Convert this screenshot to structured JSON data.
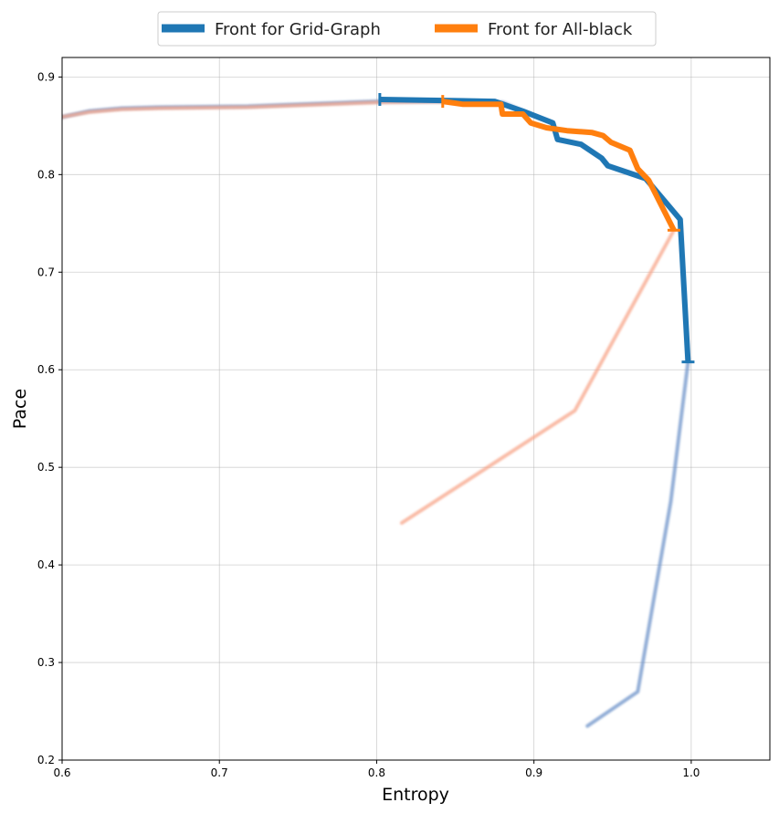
{
  "chart_data": {
    "type": "line",
    "xlabel": "Entropy",
    "ylabel": "Pace",
    "xlim": [
      0.6,
      1.05
    ],
    "ylim": [
      0.2,
      0.92
    ],
    "xticks": [
      0.6,
      0.7,
      0.8,
      0.9,
      1.0
    ],
    "xtick_labels": [
      "0.6",
      "0.7",
      "0.8",
      "0.9",
      "1.0"
    ],
    "yticks": [
      0.2,
      0.3,
      0.4,
      0.5,
      0.6,
      0.7,
      0.8,
      0.9
    ],
    "ytick_labels": [
      "0.2",
      "0.3",
      "0.4",
      "0.5",
      "0.6",
      "0.7",
      "0.8",
      "0.9"
    ],
    "grid": true,
    "legend_position": "top-center (outside plot)",
    "series": [
      {
        "name": "Front for Grid-Graph",
        "color": "#1f77b4",
        "role": "front",
        "x": [
          0.802,
          0.875,
          0.893,
          0.912,
          0.915,
          0.93,
          0.943,
          0.947,
          0.971,
          0.993,
          0.998
        ],
        "y": [
          0.877,
          0.875,
          0.865,
          0.853,
          0.836,
          0.831,
          0.817,
          0.809,
          0.796,
          0.754,
          0.608
        ]
      },
      {
        "name": "Front for All-black",
        "color": "#ff7f0e",
        "role": "front",
        "x": [
          0.842,
          0.855,
          0.879,
          0.88,
          0.893,
          0.898,
          0.908,
          0.921,
          0.937,
          0.944,
          0.949,
          0.961,
          0.966,
          0.973,
          0.989
        ],
        "y": [
          0.875,
          0.872,
          0.872,
          0.862,
          0.862,
          0.853,
          0.848,
          0.845,
          0.843,
          0.84,
          0.833,
          0.825,
          0.806,
          0.794,
          0.743
        ]
      },
      {
        "name": "",
        "color": "#6f93c9",
        "role": "faint",
        "x": [
          0.6,
          0.617,
          0.638,
          0.662,
          0.718,
          0.8,
          0.842,
          0.88,
          0.893,
          0.912,
          0.915,
          0.93,
          0.943,
          0.947,
          0.971,
          0.993,
          0.998,
          0.987,
          0.966,
          0.934
        ],
        "y": [
          0.859,
          0.865,
          0.868,
          0.869,
          0.87,
          0.875,
          0.875,
          0.874,
          0.865,
          0.853,
          0.836,
          0.831,
          0.817,
          0.809,
          0.796,
          0.754,
          0.608,
          0.465,
          0.27,
          0.235
        ]
      },
      {
        "name": "",
        "color": "#f7a58a",
        "role": "faint",
        "x": [
          0.6,
          0.617,
          0.638,
          0.662,
          0.718,
          0.8,
          0.842,
          0.855,
          0.879,
          0.88,
          0.893,
          0.898,
          0.908,
          0.921,
          0.937,
          0.944,
          0.949,
          0.961,
          0.966,
          0.973,
          0.989,
          0.926,
          0.816
        ],
        "y": [
          0.859,
          0.864,
          0.867,
          0.868,
          0.869,
          0.874,
          0.875,
          0.872,
          0.872,
          0.862,
          0.862,
          0.853,
          0.848,
          0.845,
          0.843,
          0.84,
          0.833,
          0.825,
          0.806,
          0.794,
          0.743,
          0.558,
          0.443
        ]
      }
    ]
  }
}
